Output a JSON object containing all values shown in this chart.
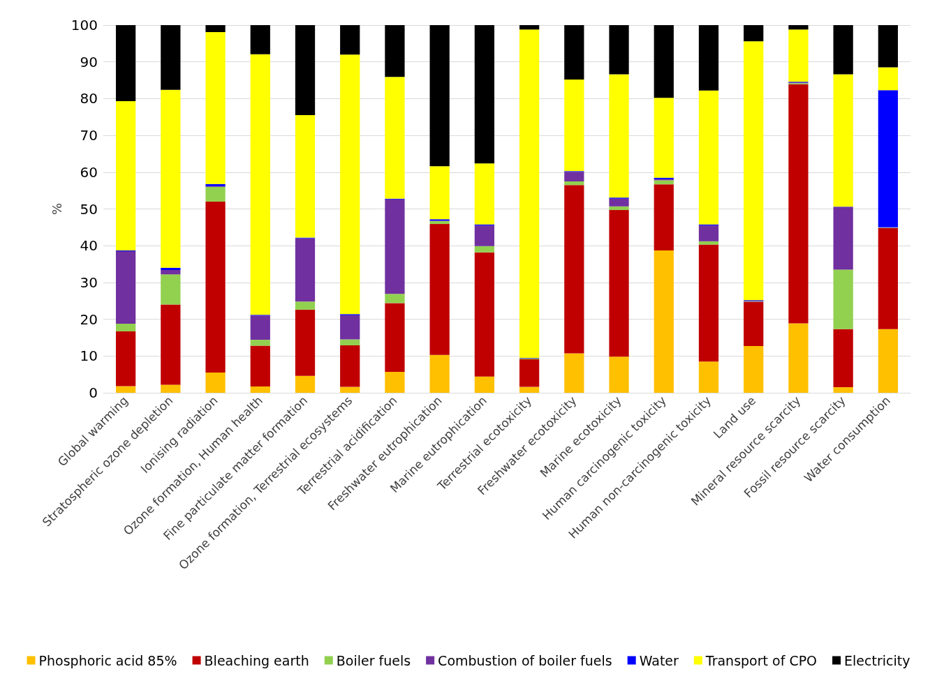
{
  "chart_data": {
    "type": "bar",
    "stacked": true,
    "ylabel": "%",
    "categories": [
      "Global warming",
      "Stratospheric ozone depletion",
      "Ionising radiation",
      "Ozone formation, Human health",
      "Fine particulate matter formation",
      "Ozone formation, Terrestrial ecosystems",
      "Terrestrial acidification",
      "Freshwater eutrophication",
      "Marine eutrophication",
      "Terrestrial ecotoxicity",
      "Freshwater ecotoxicity",
      "Marine ecotoxicity",
      "Human carcinogenic toxicity",
      "Human non-carcinogenic toxicity",
      "Land use",
      "Mineral resource scarcity",
      "Fossil resource scarcity",
      "Water consumption"
    ],
    "series": [
      {
        "name": "Phosphoric acid 85%",
        "color": "#ffc000",
        "values": [
          1.8,
          2.2,
          5.5,
          1.7,
          4.6,
          1.6,
          5.7,
          10.3,
          4.4,
          1.6,
          10.7,
          9.8,
          38.7,
          8.5,
          12.7,
          18.9,
          1.5,
          17.3
        ]
      },
      {
        "name": "Bleaching earth",
        "color": "#c00000",
        "values": [
          14.9,
          21.8,
          46.5,
          11.1,
          18.0,
          11.3,
          18.7,
          35.6,
          33.8,
          7.5,
          45.8,
          39.9,
          18.0,
          31.8,
          12.0,
          65.0,
          15.8,
          27.5
        ]
      },
      {
        "name": "Boiler fuels",
        "color": "#92d050",
        "values": [
          2.1,
          8.2,
          4.0,
          1.6,
          2.2,
          1.6,
          2.5,
          0.8,
          1.7,
          0.2,
          1.0,
          1.0,
          1.1,
          0.9,
          0.1,
          0.3,
          16.2,
          0.1
        ]
      },
      {
        "name": "Combustion of boiler fuels",
        "color": "#7030a0",
        "values": [
          19.7,
          1.2,
          0.2,
          6.6,
          17.2,
          6.6,
          25.7,
          0.1,
          5.6,
          0.1,
          2.6,
          2.1,
          0.3,
          4.3,
          0.2,
          0.2,
          17.0,
          0.1
        ]
      },
      {
        "name": "Water",
        "color": "#0000ff",
        "values": [
          0.2,
          0.6,
          0.6,
          0.2,
          0.2,
          0.3,
          0.2,
          0.4,
          0.3,
          0.1,
          0.2,
          0.3,
          0.4,
          0.3,
          0.2,
          0.2,
          0.1,
          37.3
        ]
      },
      {
        "name": "Transport of CPO",
        "color": "#ffff00",
        "values": [
          40.6,
          48.4,
          41.3,
          70.9,
          33.3,
          70.6,
          33.1,
          14.4,
          16.6,
          89.3,
          24.9,
          33.5,
          21.7,
          36.4,
          70.4,
          14.2,
          36.0,
          6.2
        ]
      },
      {
        "name": "Electricity",
        "color": "#000000",
        "values": [
          20.7,
          17.6,
          1.9,
          7.9,
          24.5,
          8.0,
          14.1,
          38.4,
          37.6,
          1.2,
          14.9,
          13.4,
          19.8,
          17.8,
          4.4,
          1.2,
          13.4,
          11.7
        ]
      }
    ],
    "ylim": [
      0,
      100
    ],
    "yticks": [
      0,
      10,
      20,
      30,
      40,
      50,
      60,
      70,
      80,
      90,
      100
    ],
    "grid": "y",
    "legend": "bottom"
  }
}
